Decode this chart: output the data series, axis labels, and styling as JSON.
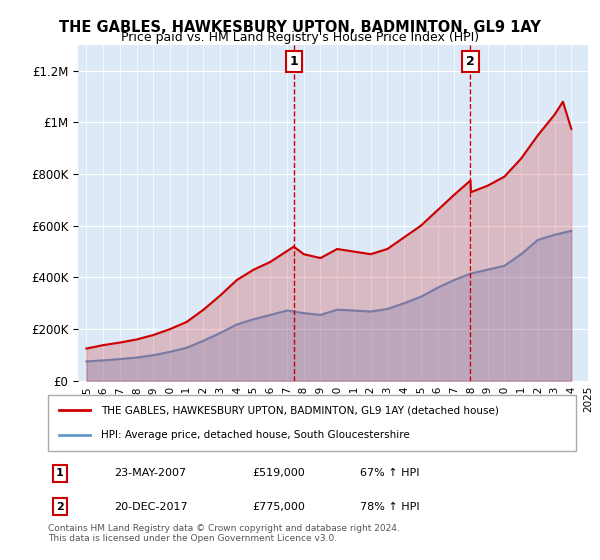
{
  "title": "THE GABLES, HAWKESBURY UPTON, BADMINTON, GL9 1AY",
  "subtitle": "Price paid vs. HM Land Registry's House Price Index (HPI)",
  "background_color": "#ffffff",
  "plot_bg_color": "#dce9f7",
  "ylabel_ticks": [
    "£0",
    "£200K",
    "£400K",
    "£600K",
    "£800K",
    "£1M",
    "£1.2M"
  ],
  "ytick_values": [
    0,
    200000,
    400000,
    600000,
    800000,
    1000000,
    1200000
  ],
  "ylim": [
    0,
    1300000
  ],
  "legend_line1": "THE GABLES, HAWKESBURY UPTON, BADMINTON, GL9 1AY (detached house)",
  "legend_line2": "HPI: Average price, detached house, South Gloucestershire",
  "transaction1_label": "1",
  "transaction1_date": "23-MAY-2007",
  "transaction1_price": "£519,000",
  "transaction1_hpi": "67% ↑ HPI",
  "transaction2_label": "2",
  "transaction2_date": "20-DEC-2017",
  "transaction2_price": "£775,000",
  "transaction2_hpi": "78% ↑ HPI",
  "footer": "Contains HM Land Registry data © Crown copyright and database right 2024.\nThis data is licensed under the Open Government Licence v3.0.",
  "line_color_red": "#cc0000",
  "line_color_blue": "#6699cc",
  "hpi_years": [
    1995,
    1996,
    1997,
    1998,
    1999,
    2000,
    2001,
    2002,
    2003,
    2004,
    2005,
    2006,
    2007,
    2008,
    2009,
    2010,
    2011,
    2012,
    2013,
    2014,
    2015,
    2016,
    2017,
    2018,
    2019,
    2020,
    2021,
    2022,
    2023,
    2024
  ],
  "hpi_values": [
    75000,
    79000,
    84000,
    90000,
    99000,
    112000,
    128000,
    155000,
    185000,
    218000,
    238000,
    255000,
    272000,
    262000,
    255000,
    275000,
    272000,
    268000,
    278000,
    300000,
    325000,
    360000,
    390000,
    415000,
    430000,
    445000,
    490000,
    545000,
    565000,
    580000
  ],
  "property_years": [
    1995.0,
    1995.4,
    1996.0,
    1997.0,
    1998.0,
    1999.0,
    2000.0,
    2001.0,
    2002.0,
    2003.0,
    2004.0,
    2005.0,
    2006.0,
    2007.4,
    2008.0,
    2009.0,
    2010.0,
    2011.0,
    2012.0,
    2013.0,
    2014.0,
    2015.0,
    2016.0,
    2017.0,
    2017.97,
    2018.0,
    2019.0,
    2020.0,
    2021.0,
    2022.0,
    2023.0,
    2023.5,
    2024.0
  ],
  "property_values": [
    125000,
    130000,
    138000,
    148000,
    160000,
    177000,
    200000,
    228000,
    275000,
    330000,
    390000,
    430000,
    460000,
    519000,
    490000,
    475000,
    510000,
    500000,
    490000,
    510000,
    555000,
    600000,
    660000,
    720000,
    775000,
    730000,
    755000,
    790000,
    860000,
    950000,
    1030000,
    1080000,
    975000
  ],
  "transaction1_x": 2007.4,
  "transaction1_y": 519000,
  "transaction2_x": 2017.97,
  "transaction2_y": 775000,
  "xlim_start": 1994.5,
  "xlim_end": 2025.0
}
